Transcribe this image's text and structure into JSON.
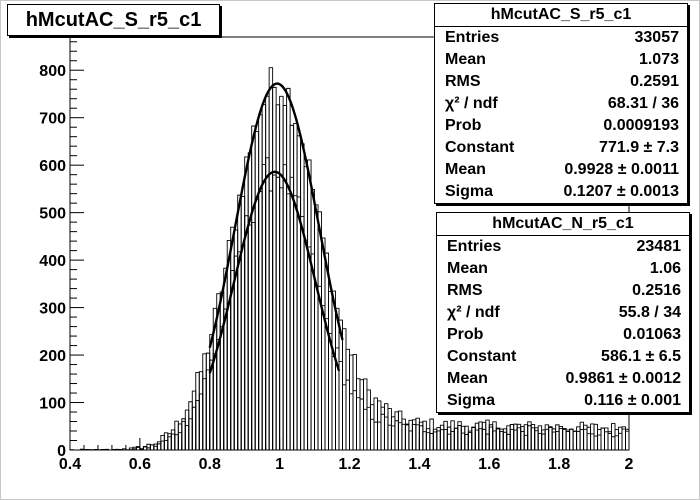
{
  "title": "hMcutAC_S_r5_c1",
  "chart_data": {
    "type": "histogram",
    "xlim": [
      0.4,
      2.0
    ],
    "ylim": [
      0,
      870
    ],
    "x_ticks": [
      "0.4",
      "0.6",
      "0.8",
      "1",
      "1.2",
      "1.4",
      "1.6",
      "1.8",
      "2"
    ],
    "y_ticks": [
      "0",
      "100",
      "200",
      "300",
      "400",
      "500",
      "600",
      "700",
      "800"
    ],
    "series": [
      {
        "name": "hMcutAC_S_r5_c1",
        "entries": 33057,
        "mean": 1.073,
        "rms": 0.2591,
        "fit": {
          "constant": 771.9,
          "mean": 0.9928,
          "sigma": 0.1207,
          "range": [
            0.8,
            1.18
          ]
        }
      },
      {
        "name": "hMcutAC_N_r5_c1",
        "entries": 23481,
        "mean": 1.06,
        "rms": 0.2516,
        "fit": {
          "constant": 586.1,
          "mean": 0.9861,
          "sigma": 0.116,
          "range": [
            0.8,
            1.17
          ]
        }
      }
    ]
  },
  "stats_s": {
    "header": "hMcutAC_S_r5_c1",
    "rows": [
      {
        "label": "Entries",
        "value": "33057"
      },
      {
        "label": "Mean",
        "value": "1.073"
      },
      {
        "label": "RMS",
        "value": "0.2591"
      },
      {
        "label": "χ² / ndf",
        "value": "68.31 / 36"
      },
      {
        "label": "Prob",
        "value": "0.0009193"
      },
      {
        "label": "Constant",
        "value": "771.9 ± 7.3"
      },
      {
        "label": "Mean",
        "value": "0.9928 ± 0.0011"
      },
      {
        "label": "Sigma",
        "value": "0.1207 ± 0.0013"
      }
    ]
  },
  "stats_n": {
    "header": "hMcutAC_N_r5_c1",
    "rows": [
      {
        "label": "Entries",
        "value": "23481"
      },
      {
        "label": "Mean",
        "value": "1.06"
      },
      {
        "label": "RMS",
        "value": "0.2516"
      },
      {
        "label": "χ² / ndf",
        "value": "55.8 / 34"
      },
      {
        "label": "Prob",
        "value": "0.01063"
      },
      {
        "label": "Constant",
        "value": "586.1 ± 6.5"
      },
      {
        "label": "Mean",
        "value": "0.9861 ± 0.0012"
      },
      {
        "label": "Sigma",
        "value": "0.116 ± 0.001"
      }
    ]
  }
}
